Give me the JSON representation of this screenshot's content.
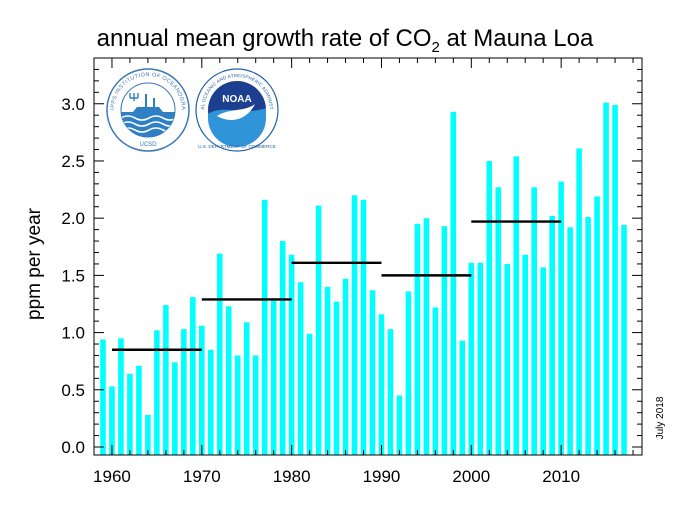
{
  "chart_data": {
    "type": "bar",
    "title_main": "annual mean growth rate of CO",
    "title_sub": "2",
    "title_tail": " at Mauna Loa",
    "ylabel": "ppm per year",
    "xlabel": "",
    "date_note": "July 2018",
    "xlim": [
      1958,
      2019
    ],
    "ylim": [
      -0.07,
      3.4
    ],
    "x_ticks": [
      1960,
      1970,
      1980,
      1990,
      2000,
      2010
    ],
    "y_ticks": [
      "0.0",
      "0.5",
      "1.0",
      "1.5",
      "2.0",
      "2.5",
      "3.0"
    ],
    "bar_color": "#00ffff",
    "years": [
      1959,
      1960,
      1961,
      1962,
      1963,
      1964,
      1965,
      1966,
      1967,
      1968,
      1969,
      1970,
      1971,
      1972,
      1973,
      1974,
      1975,
      1976,
      1977,
      1978,
      1979,
      1980,
      1981,
      1982,
      1983,
      1984,
      1985,
      1986,
      1987,
      1988,
      1989,
      1990,
      1991,
      1992,
      1993,
      1994,
      1995,
      1996,
      1997,
      1998,
      1999,
      2000,
      2001,
      2002,
      2003,
      2004,
      2005,
      2006,
      2007,
      2008,
      2009,
      2010,
      2011,
      2012,
      2013,
      2014,
      2015,
      2016,
      2017
    ],
    "values": [
      0.94,
      0.53,
      0.95,
      0.64,
      0.71,
      0.28,
      1.02,
      1.24,
      0.74,
      1.03,
      1.31,
      1.06,
      0.85,
      1.69,
      1.23,
      0.8,
      1.09,
      0.8,
      2.16,
      1.3,
      1.8,
      1.68,
      1.44,
      0.99,
      2.11,
      1.4,
      1.27,
      1.47,
      2.2,
      2.16,
      1.37,
      1.16,
      1.03,
      0.45,
      1.36,
      1.95,
      2.0,
      1.22,
      1.93,
      2.93,
      0.93,
      1.61,
      1.61,
      2.5,
      2.27,
      1.6,
      2.54,
      1.68,
      2.27,
      1.57,
      2.02,
      2.32,
      1.92,
      2.61,
      2.01,
      2.19,
      3.01,
      2.99,
      1.94
    ],
    "decade_means": [
      {
        "start": 1960,
        "end": 1970,
        "value": 0.85
      },
      {
        "start": 1970,
        "end": 1980,
        "value": 1.29
      },
      {
        "start": 1980,
        "end": 1990,
        "value": 1.61
      },
      {
        "start": 1990,
        "end": 2000,
        "value": 1.5
      },
      {
        "start": 2000,
        "end": 2010,
        "value": 1.97
      }
    ],
    "grid": false
  },
  "logos": {
    "left": "SCRIPPS INSTITUTION OF OCEANOGRAPHY",
    "left_bottom": "UCSD",
    "right": "NOAA",
    "right_arc": "NATIONAL OCEANIC AND ATMOSPHERIC ADMINISTRATION",
    "right_bottom": "U.S. DEPARTMENT OF COMMERCE"
  }
}
